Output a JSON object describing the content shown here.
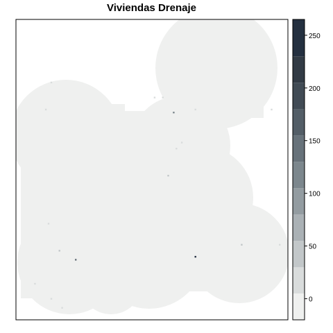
{
  "chart_data": {
    "type": "heatmap",
    "title": "Viviendas Drenaje",
    "xlabel": "",
    "ylabel": "",
    "legend": {
      "placement": "right",
      "range": [
        -20,
        265
      ],
      "ticks": [
        0,
        50,
        100,
        150,
        200,
        250
      ],
      "tick_labels": [
        "0",
        "50",
        "100",
        "150",
        "200",
        "250"
      ],
      "bins": [
        {
          "from": -20,
          "to": 5,
          "color": "#eff0ef"
        },
        {
          "from": 5,
          "to": 30,
          "color": "#d9dcdc"
        },
        {
          "from": 30,
          "to": 55,
          "color": "#c2c7c9"
        },
        {
          "from": 55,
          "to": 80,
          "color": "#aab1b5"
        },
        {
          "from": 80,
          "to": 105,
          "color": "#939ca1"
        },
        {
          "from": 105,
          "to": 130,
          "color": "#7c878d"
        },
        {
          "from": 130,
          "to": 155,
          "color": "#67727a"
        },
        {
          "from": 155,
          "to": 180,
          "color": "#535e67"
        },
        {
          "from": 180,
          "to": 205,
          "color": "#414b55"
        },
        {
          "from": 205,
          "to": 230,
          "color": "#323b45"
        },
        {
          "from": 230,
          "to": 265,
          "color": "#243040"
        }
      ]
    },
    "field_value": 0,
    "hotspots": [
      {
        "x": 0.16,
        "y": 0.77,
        "value": 40
      },
      {
        "x": 0.13,
        "y": 0.21,
        "value": 25
      },
      {
        "x": 0.11,
        "y": 0.3,
        "value": 15
      },
      {
        "x": 0.58,
        "y": 0.31,
        "value": 110
      },
      {
        "x": 0.51,
        "y": 0.26,
        "value": 15
      },
      {
        "x": 0.54,
        "y": 0.26,
        "value": 12
      },
      {
        "x": 0.59,
        "y": 0.43,
        "value": 12
      },
      {
        "x": 0.61,
        "y": 0.41,
        "value": 10
      },
      {
        "x": 0.66,
        "y": 0.3,
        "value": 10
      },
      {
        "x": 0.56,
        "y": 0.52,
        "value": 30
      },
      {
        "x": 0.12,
        "y": 0.68,
        "value": 15
      },
      {
        "x": 0.22,
        "y": 0.8,
        "value": 140
      },
      {
        "x": 0.66,
        "y": 0.79,
        "value": 265
      },
      {
        "x": 0.83,
        "y": 0.75,
        "value": 45
      },
      {
        "x": 0.97,
        "y": 0.75,
        "value": 20
      },
      {
        "x": 0.07,
        "y": 0.88,
        "value": 12
      },
      {
        "x": 0.13,
        "y": 0.93,
        "value": 10
      },
      {
        "x": 0.17,
        "y": 0.96,
        "value": 10
      },
      {
        "x": 0.94,
        "y": 0.3,
        "value": 8
      }
    ]
  }
}
